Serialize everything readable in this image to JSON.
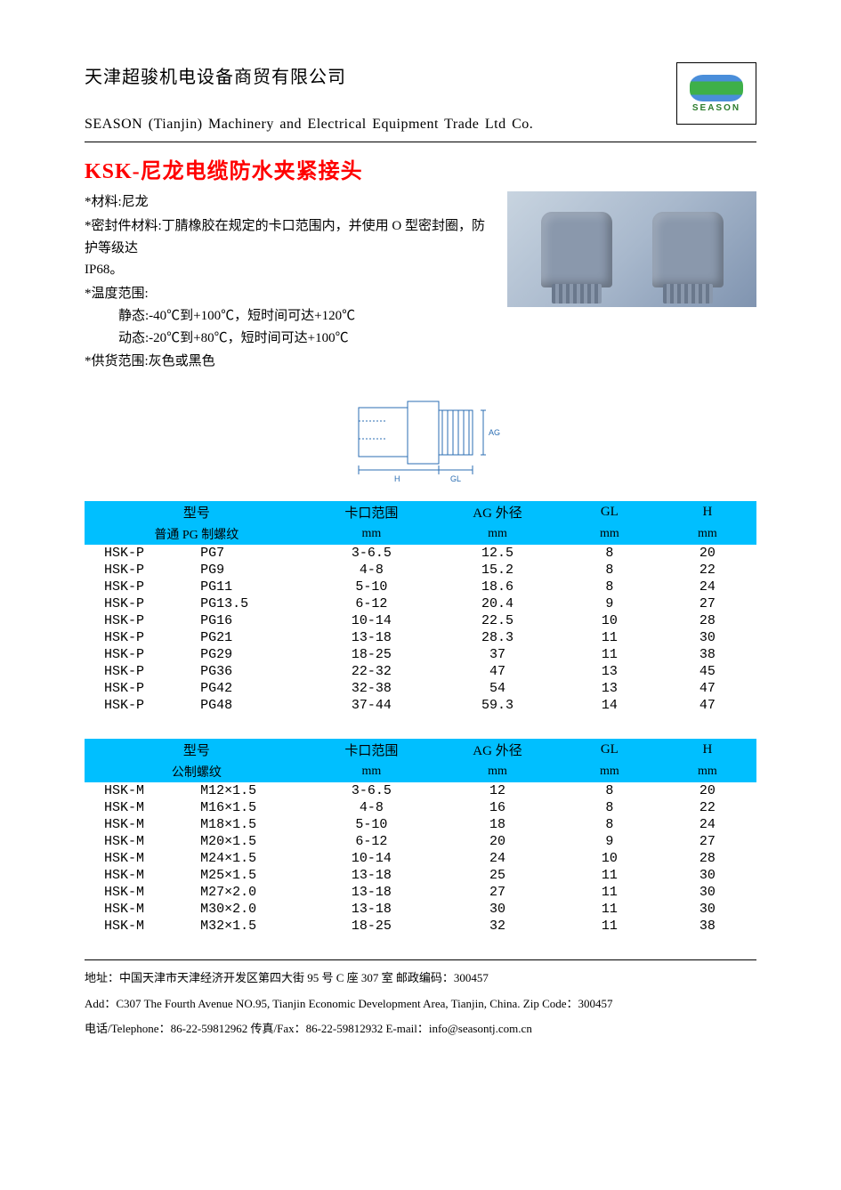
{
  "header": {
    "company_cn": "天津超骏机电设备商贸有限公司",
    "company_en": "SEASON (Tianjin) Machinery and Electrical Equipment Trade Ltd Co.",
    "logo_text": "SEASON"
  },
  "product": {
    "title": "KSK-尼龙电缆防水夹紧接头",
    "material_label": "*材料:尼龙",
    "seal_label": "*密封件材料:丁腈橡胶在规定的卡口范围内，并使用 O 型密封圈，防护等级达",
    "seal_line2": "IP68。",
    "temp_label": "*温度范围:",
    "temp_static": "静态:-40℃到+100℃，短时间可达+120℃",
    "temp_dynamic": "动态:-20℃到+80℃，短时间可达+100℃",
    "supply_label": "*供货范围:灰色或黑色"
  },
  "diagram": {
    "label_ag": "AG",
    "label_h": "H",
    "label_gl": "GL"
  },
  "table1": {
    "header_bg": "#00bfff",
    "columns": {
      "model": "型号",
      "model_sub": "普通 PG 制螺纹",
      "range": "卡口范围",
      "range_sub": "mm",
      "ag": "AG 外径",
      "ag_sub": "mm",
      "gl": "GL",
      "gl_sub": "mm",
      "h": "H",
      "h_sub": "mm"
    },
    "rows": [
      {
        "a": "HSK-P",
        "b": "PG7",
        "range": "3-6.5",
        "ag": "12.5",
        "gl": "8",
        "h": "20"
      },
      {
        "a": "HSK-P",
        "b": "PG9",
        "range": "4-8",
        "ag": "15.2",
        "gl": "8",
        "h": "22"
      },
      {
        "a": "HSK-P",
        "b": "PG11",
        "range": "5-10",
        "ag": "18.6",
        "gl": "8",
        "h": "24"
      },
      {
        "a": "HSK-P",
        "b": "PG13.5",
        "range": "6-12",
        "ag": "20.4",
        "gl": "9",
        "h": "27"
      },
      {
        "a": "HSK-P",
        "b": "PG16",
        "range": "10-14",
        "ag": "22.5",
        "gl": "10",
        "h": "28"
      },
      {
        "a": "HSK-P",
        "b": "PG21",
        "range": "13-18",
        "ag": "28.3",
        "gl": "11",
        "h": "30"
      },
      {
        "a": "HSK-P",
        "b": "PG29",
        "range": "18-25",
        "ag": "37",
        "gl": "11",
        "h": "38"
      },
      {
        "a": "HSK-P",
        "b": "PG36",
        "range": "22-32",
        "ag": "47",
        "gl": "13",
        "h": "45"
      },
      {
        "a": "HSK-P",
        "b": "PG42",
        "range": "32-38",
        "ag": "54",
        "gl": "13",
        "h": "47"
      },
      {
        "a": "HSK-P",
        "b": "PG48",
        "range": "37-44",
        "ag": "59.3",
        "gl": "14",
        "h": "47"
      }
    ]
  },
  "table2": {
    "header_bg": "#00bfff",
    "columns": {
      "model": "型号",
      "model_sub": "公制螺纹",
      "range": "卡口范围",
      "range_sub": "mm",
      "ag": "AG 外径",
      "ag_sub": "mm",
      "gl": "GL",
      "gl_sub": "mm",
      "h": "H",
      "h_sub": "mm"
    },
    "rows": [
      {
        "a": "HSK-M",
        "b": "M12×1.5",
        "range": "3-6.5",
        "ag": "12",
        "gl": "8",
        "h": "20"
      },
      {
        "a": "HSK-M",
        "b": "M16×1.5",
        "range": "4-8",
        "ag": "16",
        "gl": "8",
        "h": "22"
      },
      {
        "a": "HSK-M",
        "b": "M18×1.5",
        "range": "5-10",
        "ag": "18",
        "gl": "8",
        "h": "24"
      },
      {
        "a": "HSK-M",
        "b": "M20×1.5",
        "range": "6-12",
        "ag": "20",
        "gl": "9",
        "h": "27"
      },
      {
        "a": "HSK-M",
        "b": "M24×1.5",
        "range": "10-14",
        "ag": "24",
        "gl": "10",
        "h": "28"
      },
      {
        "a": "HSK-M",
        "b": "M25×1.5",
        "range": "13-18",
        "ag": "25",
        "gl": "11",
        "h": "30"
      },
      {
        "a": "HSK-M",
        "b": "M27×2.0",
        "range": "13-18",
        "ag": "27",
        "gl": "11",
        "h": "30"
      },
      {
        "a": "HSK-M",
        "b": "M30×2.0",
        "range": "13-18",
        "ag": "30",
        "gl": "11",
        "h": "30"
      },
      {
        "a": "HSK-M",
        "b": "M32×1.5",
        "range": "18-25",
        "ag": "32",
        "gl": "11",
        "h": "38"
      }
    ]
  },
  "footer": {
    "address_cn": "地址：中国天津市天津经济开发区第四大街 95 号 C 座 307 室   邮政编码：300457",
    "address_en": "Add：C307 The Fourth Avenue NO.95, Tianjin Economic Development Area, Tianjin, China.    Zip Code：300457",
    "contact": "电话/Telephone：86-22-59812962    传真/Fax：86-22-59812932    E-mail：info@seasontj.com.cn"
  }
}
